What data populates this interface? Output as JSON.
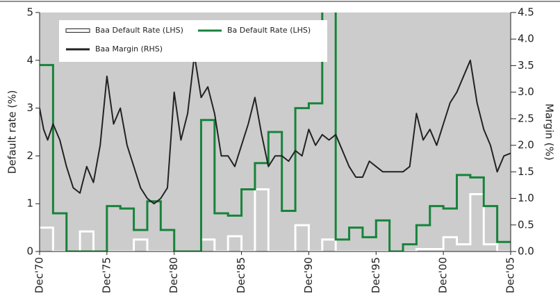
{
  "chart_data": {
    "type": "line",
    "xlabel": null,
    "ylabel": "Default rate (%)",
    "y2label": "Margin (%)",
    "xlim": [
      1970,
      2005
    ],
    "xticks": [
      {
        "value": 1970,
        "label": "Dec'70"
      },
      {
        "value": 1975,
        "label": "Dec'75"
      },
      {
        "value": 1980,
        "label": "Dec'80"
      },
      {
        "value": 1985,
        "label": "Dec'85"
      },
      {
        "value": 1990,
        "label": "Dec'90"
      },
      {
        "value": 1995,
        "label": "Dec'95"
      },
      {
        "value": 2000,
        "label": "Dec'00"
      },
      {
        "value": 2005,
        "label": "Dec'05"
      }
    ],
    "ylim": [
      0,
      5
    ],
    "yticks": [
      0,
      1,
      2,
      3,
      4,
      5
    ],
    "y2lim": [
      0,
      4.5
    ],
    "y2ticks": [
      {
        "value": 0,
        "label": "0.0"
      },
      {
        "value": 0.5,
        "label": "0.5"
      },
      {
        "value": 1,
        "label": "1.0"
      },
      {
        "value": 1.5,
        "label": "1.5"
      },
      {
        "value": 2,
        "label": "2.0"
      },
      {
        "value": 2.5,
        "label": "2.5"
      },
      {
        "value": 3,
        "label": "3.0"
      },
      {
        "value": 3.5,
        "label": "3.5"
      },
      {
        "value": 4,
        "label": "4.0"
      },
      {
        "value": 4.5,
        "label": "4.5"
      }
    ],
    "legend": "upper left",
    "grid": false,
    "background": "#cccccc",
    "series": [
      {
        "name": "Baa Default Rate (LHS)",
        "color": "#ffffff",
        "step": true,
        "x": [
          1970,
          1971,
          1972,
          1973,
          1974,
          1975,
          1976,
          1977,
          1978,
          1979,
          1980,
          1981,
          1982,
          1983,
          1984,
          1985,
          1986,
          1987,
          1988,
          1989,
          1990,
          1991,
          1992,
          1993,
          1994,
          1995,
          1996,
          1997,
          1998,
          1999,
          2000,
          2001,
          2002,
          2003,
          2004
        ],
        "values": [
          0.5,
          0,
          0,
          0.42,
          0,
          0,
          0,
          0.25,
          0,
          0,
          0,
          0,
          0.25,
          0,
          0.32,
          0,
          1.3,
          0,
          0,
          0.55,
          0,
          0.25,
          0,
          0,
          0,
          0,
          0,
          0,
          0.05,
          0.05,
          0.3,
          0.15,
          1.2,
          0.15,
          0
        ]
      },
      {
        "name": "Ba Default Rate (LHS)",
        "color": "#17833b",
        "step": true,
        "x": [
          1970,
          1971,
          1972,
          1973,
          1974,
          1975,
          1976,
          1977,
          1978,
          1979,
          1980,
          1981,
          1982,
          1983,
          1984,
          1985,
          1986,
          1987,
          1988,
          1989,
          1990,
          1991,
          1992,
          1993,
          1994,
          1995,
          1996,
          1997,
          1998,
          1999,
          2000,
          2001,
          2002,
          2003,
          2004
        ],
        "values": [
          3.9,
          0.8,
          0,
          0,
          0,
          0.95,
          0.9,
          0.45,
          1.05,
          0.45,
          0,
          0,
          2.75,
          0.8,
          0.75,
          1.3,
          1.85,
          2.5,
          0.85,
          3.0,
          3.1,
          9.8,
          0.25,
          0.5,
          0.3,
          0.65,
          0,
          0.15,
          0.55,
          0.95,
          0.9,
          1.6,
          1.55,
          0.95,
          0.2
        ]
      },
      {
        "name": "Baa Margin (RHS)",
        "color": "#222222",
        "axis": "y2",
        "x": [
          1970,
          1970.3,
          1970.6,
          1971,
          1971.5,
          1972,
          1972.5,
          1973,
          1973.5,
          1974,
          1974.5,
          1975,
          1975.5,
          1976,
          1976.5,
          1977,
          1977.5,
          1978,
          1978.5,
          1979,
          1979.5,
          1980,
          1980.5,
          1981,
          1981.5,
          1982,
          1982.5,
          1983,
          1983.5,
          1984,
          1984.5,
          1985,
          1985.5,
          1986,
          1986.5,
          1987,
          1987.5,
          1988,
          1988.5,
          1989,
          1989.5,
          1990,
          1990.5,
          1991,
          1991.5,
          1992,
          1992.5,
          1993,
          1993.5,
          1994,
          1994.5,
          1995,
          1995.5,
          1996,
          1996.5,
          1997,
          1997.5,
          1998,
          1998.5,
          1999,
          1999.5,
          2000,
          2000.5,
          2001,
          2001.5,
          2002,
          2002.5,
          2003,
          2003.5,
          2004,
          2004.5,
          2005
        ],
        "values": [
          2.7,
          2.3,
          2.1,
          2.4,
          2.1,
          1.6,
          1.2,
          1.1,
          1.6,
          1.3,
          2.0,
          3.3,
          2.4,
          2.7,
          2.0,
          1.6,
          1.2,
          1.0,
          0.9,
          1.0,
          1.2,
          3.0,
          2.1,
          2.6,
          3.7,
          2.9,
          3.1,
          2.6,
          1.8,
          1.8,
          1.6,
          2.0,
          2.4,
          2.9,
          2.2,
          1.6,
          1.8,
          1.8,
          1.7,
          1.9,
          1.8,
          2.3,
          2.0,
          2.2,
          2.1,
          2.2,
          1.9,
          1.6,
          1.4,
          1.4,
          1.7,
          1.6,
          1.5,
          1.5,
          1.5,
          1.5,
          1.6,
          2.6,
          2.1,
          2.3,
          2.0,
          2.4,
          2.8,
          3.0,
          3.3,
          3.6,
          2.8,
          2.3,
          2.0,
          1.5,
          1.8,
          1.85
        ]
      }
    ]
  }
}
